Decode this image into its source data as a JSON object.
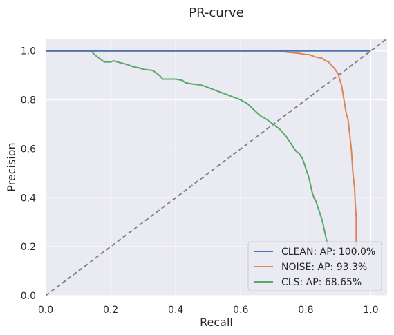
{
  "chart_data": {
    "type": "line",
    "title": "PR-curve",
    "xlabel": "Recall",
    "ylabel": "Precision",
    "xlim": [
      0.0,
      1.05
    ],
    "ylim": [
      0.0,
      1.05
    ],
    "x_ticks": [
      "0.0",
      "0.2",
      "0.4",
      "0.6",
      "0.8",
      "1.0"
    ],
    "y_ticks": [
      "0.0",
      "0.2",
      "0.4",
      "0.6",
      "0.8",
      "1.0"
    ],
    "grid": true,
    "legend_position": "lower-right",
    "background_color": "#EAEAF2",
    "series": [
      {
        "name": "CLEAN: AP: 100.0%",
        "color": "#4C72B0",
        "points": [
          [
            0.0,
            1.0
          ],
          [
            1.0,
            1.0
          ]
        ]
      },
      {
        "name": "NOISE: AP: 93.3%",
        "color": "#DD8452",
        "points": [
          [
            0.0,
            1.0
          ],
          [
            0.72,
            1.0
          ],
          [
            0.74,
            0.995
          ],
          [
            0.78,
            0.99
          ],
          [
            0.8,
            0.985
          ],
          [
            0.81,
            0.985
          ],
          [
            0.83,
            0.975
          ],
          [
            0.85,
            0.97
          ],
          [
            0.86,
            0.96
          ],
          [
            0.87,
            0.955
          ],
          [
            0.88,
            0.94
          ],
          [
            0.89,
            0.925
          ],
          [
            0.9,
            0.905
          ],
          [
            0.905,
            0.88
          ],
          [
            0.91,
            0.86
          ],
          [
            0.915,
            0.82
          ],
          [
            0.92,
            0.78
          ],
          [
            0.925,
            0.74
          ],
          [
            0.93,
            0.72
          ],
          [
            0.935,
            0.66
          ],
          [
            0.94,
            0.6
          ],
          [
            0.945,
            0.5
          ],
          [
            0.95,
            0.44
          ],
          [
            0.952,
            0.38
          ],
          [
            0.955,
            0.32
          ],
          [
            0.955,
            0.2
          ]
        ]
      },
      {
        "name": "CLS: AP: 68.65%",
        "color": "#55A868",
        "points": [
          [
            0.0,
            1.0
          ],
          [
            0.14,
            1.0
          ],
          [
            0.15,
            0.985
          ],
          [
            0.16,
            0.975
          ],
          [
            0.17,
            0.965
          ],
          [
            0.18,
            0.955
          ],
          [
            0.19,
            0.955
          ],
          [
            0.2,
            0.955
          ],
          [
            0.21,
            0.96
          ],
          [
            0.22,
            0.955
          ],
          [
            0.25,
            0.945
          ],
          [
            0.27,
            0.935
          ],
          [
            0.29,
            0.93
          ],
          [
            0.3,
            0.925
          ],
          [
            0.33,
            0.92
          ],
          [
            0.35,
            0.9
          ],
          [
            0.36,
            0.885
          ],
          [
            0.38,
            0.885
          ],
          [
            0.4,
            0.885
          ],
          [
            0.42,
            0.88
          ],
          [
            0.43,
            0.87
          ],
          [
            0.45,
            0.865
          ],
          [
            0.48,
            0.86
          ],
          [
            0.5,
            0.85
          ],
          [
            0.53,
            0.835
          ],
          [
            0.55,
            0.825
          ],
          [
            0.58,
            0.81
          ],
          [
            0.6,
            0.8
          ],
          [
            0.62,
            0.785
          ],
          [
            0.64,
            0.76
          ],
          [
            0.66,
            0.735
          ],
          [
            0.68,
            0.72
          ],
          [
            0.7,
            0.7
          ],
          [
            0.72,
            0.68
          ],
          [
            0.74,
            0.65
          ],
          [
            0.75,
            0.63
          ],
          [
            0.76,
            0.61
          ],
          [
            0.77,
            0.59
          ],
          [
            0.78,
            0.58
          ],
          [
            0.79,
            0.56
          ],
          [
            0.795,
            0.54
          ],
          [
            0.8,
            0.52
          ],
          [
            0.805,
            0.5
          ],
          [
            0.81,
            0.48
          ],
          [
            0.815,
            0.45
          ],
          [
            0.82,
            0.42
          ],
          [
            0.825,
            0.4
          ],
          [
            0.83,
            0.39
          ],
          [
            0.835,
            0.37
          ],
          [
            0.84,
            0.35
          ],
          [
            0.845,
            0.33
          ],
          [
            0.85,
            0.31
          ],
          [
            0.855,
            0.28
          ],
          [
            0.86,
            0.25
          ],
          [
            0.865,
            0.22
          ],
          [
            0.87,
            0.2
          ]
        ]
      }
    ],
    "reference_line": {
      "style": "dashed",
      "color": "#808080",
      "points": [
        [
          0.0,
          0.0
        ],
        [
          1.05,
          1.05
        ]
      ]
    }
  }
}
